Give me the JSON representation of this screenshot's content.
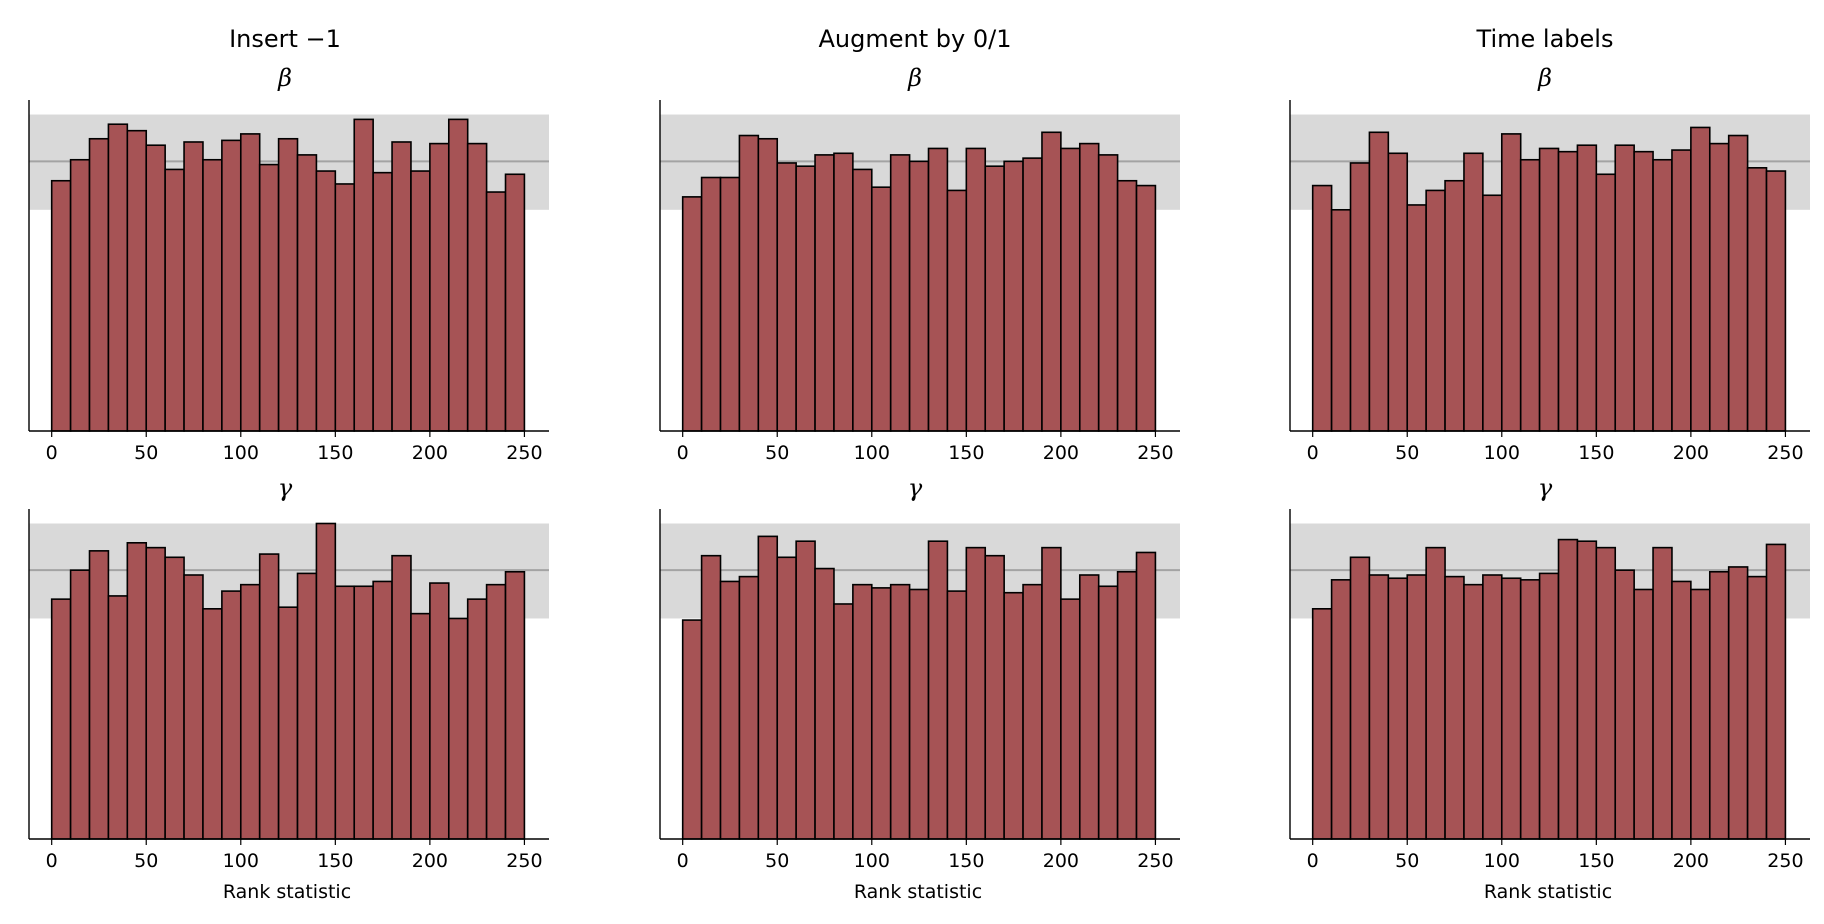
{
  "figure": {
    "column_titles": [
      "Insert −1",
      "Augment by 0/1",
      "Time labels"
    ],
    "row_titles": [
      "β",
      "γ"
    ],
    "xlabel": "Rank statistic"
  },
  "colors": {
    "bar_fill": "#a65355",
    "bar_edge": "#000000",
    "band_fill": "#d9d9d9",
    "mean_line": "#a3a3a3",
    "axis": "#000000"
  },
  "chart_data": [
    {
      "type": "bar",
      "title": "Insert −1",
      "param": "β",
      "xlabel": "",
      "bin_width": 10,
      "bin_starts": [
        0,
        10,
        20,
        30,
        40,
        50,
        60,
        70,
        80,
        90,
        100,
        110,
        120,
        130,
        140,
        150,
        160,
        170,
        180,
        190,
        200,
        210,
        220,
        230,
        240
      ],
      "values": [
        155,
        168,
        181,
        190,
        186,
        177,
        162,
        179,
        168,
        180,
        184,
        165,
        181,
        171,
        161,
        153,
        193,
        160,
        179,
        161,
        178,
        193,
        178,
        148,
        159
      ],
      "band": [
        137,
        196
      ],
      "mean_line": 167,
      "xticks": [
        0,
        50,
        100,
        150,
        200,
        250
      ],
      "xlim": [
        -12,
        263
      ],
      "ylim": [
        0,
        205
      ]
    },
    {
      "type": "bar",
      "title": "Augment by 0/1",
      "param": "β",
      "xlabel": "",
      "bin_width": 10,
      "bin_starts": [
        0,
        10,
        20,
        30,
        40,
        50,
        60,
        70,
        80,
        90,
        100,
        110,
        120,
        130,
        140,
        150,
        160,
        170,
        180,
        190,
        200,
        210,
        220,
        230,
        240
      ],
      "values": [
        145,
        157,
        157,
        183,
        181,
        166,
        164,
        171,
        172,
        162,
        151,
        171,
        167,
        175,
        149,
        175,
        164,
        167,
        169,
        185,
        175,
        178,
        171,
        155,
        152
      ],
      "band": [
        137,
        196
      ],
      "mean_line": 167,
      "xticks": [
        0,
        50,
        100,
        150,
        200,
        250
      ],
      "xlim": [
        -12,
        263
      ],
      "ylim": [
        0,
        205
      ]
    },
    {
      "type": "bar",
      "title": "Time labels",
      "param": "β",
      "xlabel": "",
      "bin_width": 10,
      "bin_starts": [
        0,
        10,
        20,
        30,
        40,
        50,
        60,
        70,
        80,
        90,
        100,
        110,
        120,
        130,
        140,
        150,
        160,
        170,
        180,
        190,
        200,
        210,
        220,
        230,
        240
      ],
      "values": [
        152,
        137,
        166,
        185,
        172,
        140,
        149,
        155,
        172,
        146,
        184,
        168,
        175,
        173,
        177,
        159,
        177,
        173,
        168,
        174,
        188,
        178,
        183,
        163,
        161
      ],
      "band": [
        137,
        196
      ],
      "mean_line": 167,
      "xticks": [
        0,
        50,
        100,
        150,
        200,
        250
      ],
      "xlim": [
        -12,
        263
      ],
      "ylim": [
        0,
        205
      ]
    },
    {
      "type": "bar",
      "title": "Insert −1",
      "param": "γ",
      "xlabel": "Rank statistic",
      "bin_width": 10,
      "bin_starts": [
        0,
        10,
        20,
        30,
        40,
        50,
        60,
        70,
        80,
        90,
        100,
        110,
        120,
        130,
        140,
        150,
        160,
        170,
        180,
        190,
        200,
        210,
        220,
        230,
        240
      ],
      "values": [
        149,
        167,
        179,
        151,
        184,
        181,
        175,
        164,
        143,
        154,
        158,
        177,
        144,
        165,
        196,
        157,
        157,
        160,
        176,
        140,
        159,
        137,
        149,
        158,
        166
      ],
      "band": [
        137,
        196
      ],
      "mean_line": 167,
      "xticks": [
        0,
        50,
        100,
        150,
        200,
        250
      ],
      "xlim": [
        -12,
        263
      ],
      "ylim": [
        0,
        205
      ]
    },
    {
      "type": "bar",
      "title": "Augment by 0/1",
      "param": "γ",
      "xlabel": "Rank statistic",
      "bin_width": 10,
      "bin_starts": [
        0,
        10,
        20,
        30,
        40,
        50,
        60,
        70,
        80,
        90,
        100,
        110,
        120,
        130,
        140,
        150,
        160,
        170,
        180,
        190,
        200,
        210,
        220,
        230,
        240
      ],
      "values": [
        136,
        176,
        160,
        163,
        188,
        175,
        185,
        168,
        146,
        158,
        156,
        158,
        155,
        185,
        154,
        181,
        176,
        153,
        158,
        181,
        149,
        164,
        157,
        166,
        178
      ],
      "band": [
        137,
        196
      ],
      "mean_line": 167,
      "xticks": [
        0,
        50,
        100,
        150,
        200,
        250
      ],
      "xlim": [
        -12,
        263
      ],
      "ylim": [
        0,
        205
      ]
    },
    {
      "type": "bar",
      "title": "Time labels",
      "param": "γ",
      "xlabel": "Rank statistic",
      "bin_width": 10,
      "bin_starts": [
        0,
        10,
        20,
        30,
        40,
        50,
        60,
        70,
        80,
        90,
        100,
        110,
        120,
        130,
        140,
        150,
        160,
        170,
        180,
        190,
        200,
        210,
        220,
        230,
        240
      ],
      "values": [
        143,
        161,
        175,
        164,
        162,
        164,
        181,
        163,
        158,
        164,
        162,
        161,
        165,
        186,
        185,
        181,
        167,
        155,
        181,
        160,
        155,
        166,
        169,
        163,
        183
      ],
      "band": [
        137,
        196
      ],
      "mean_line": 167,
      "xticks": [
        0,
        50,
        100,
        150,
        200,
        250
      ],
      "xlim": [
        -12,
        263
      ],
      "ylim": [
        0,
        205
      ]
    }
  ]
}
